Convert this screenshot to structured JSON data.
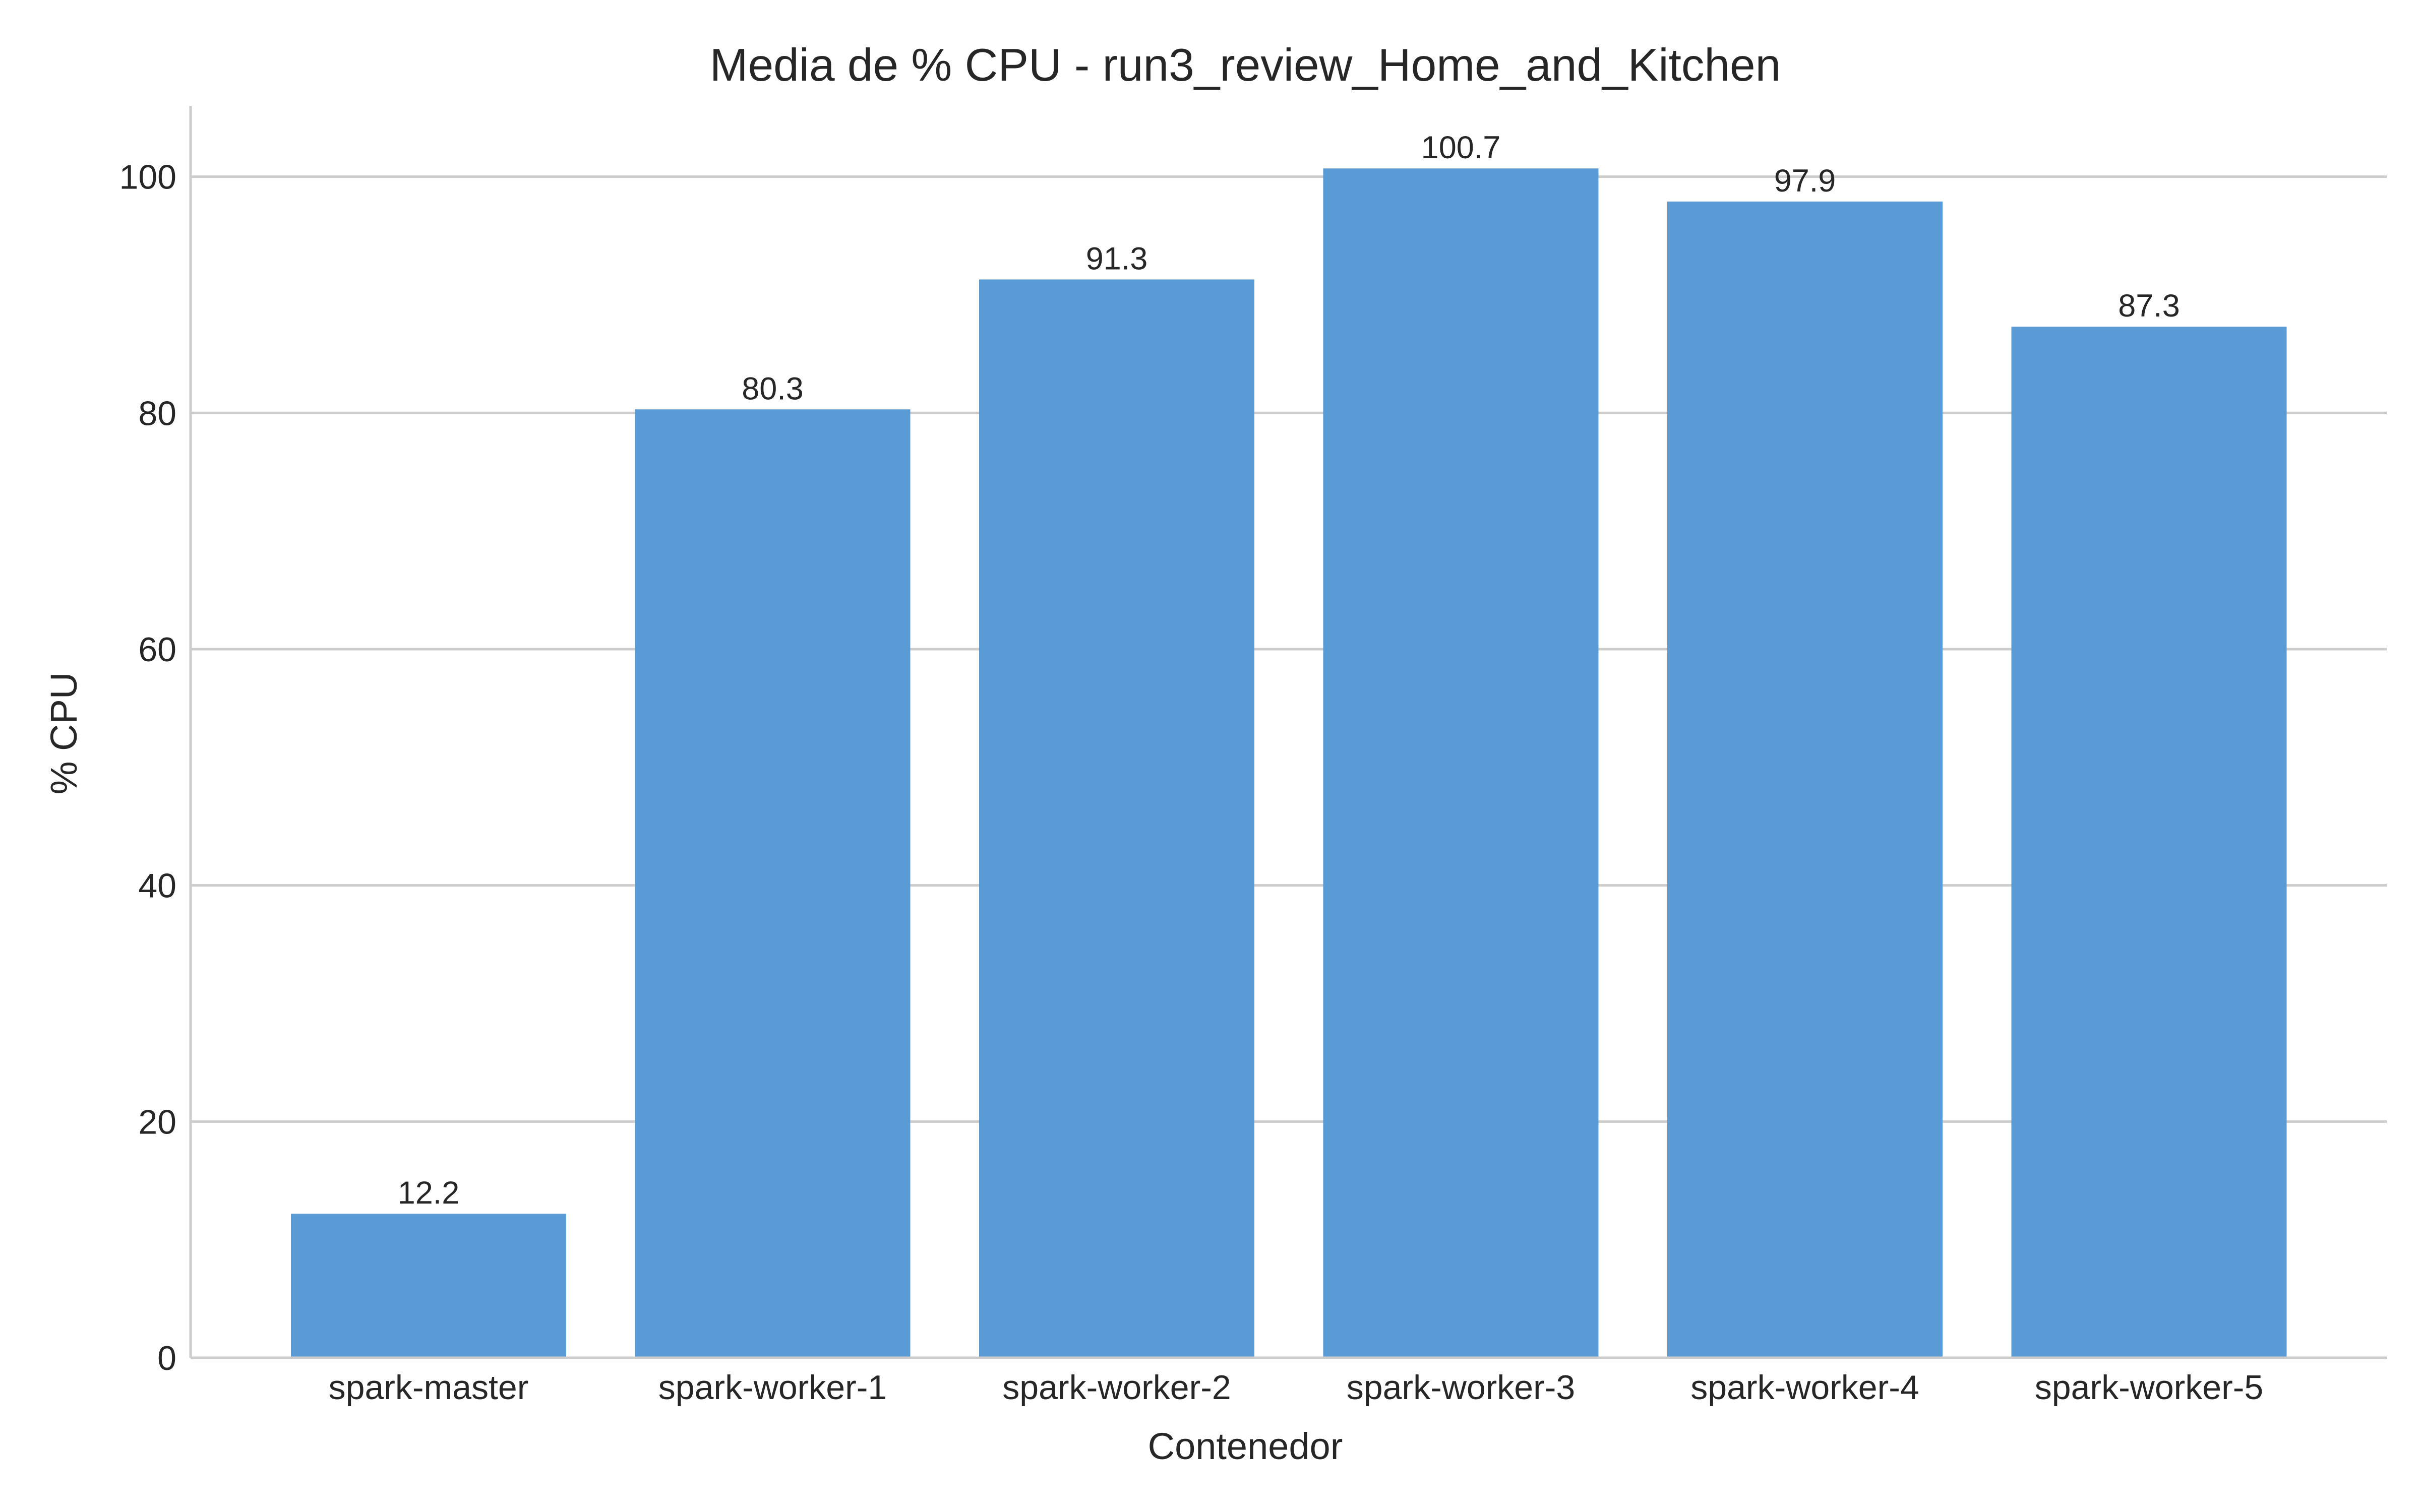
{
  "chart_data": {
    "type": "bar",
    "title": "Media de % CPU - run3_review_Home_and_Kitchen",
    "xlabel": "Contenedor",
    "ylabel": "% CPU",
    "categories": [
      "spark-master",
      "spark-worker-1",
      "spark-worker-2",
      "spark-worker-3",
      "spark-worker-4",
      "spark-worker-5"
    ],
    "values": [
      12.2,
      80.3,
      91.3,
      100.7,
      97.9,
      87.3
    ],
    "data_labels": [
      "12.2",
      "80.3",
      "91.3",
      "100.7",
      "97.9",
      "87.3"
    ],
    "ylim": [
      0,
      106
    ],
    "yticks": [
      0,
      20,
      40,
      60,
      80,
      100
    ],
    "grid": "horizontal",
    "bar_color": "#5b9bd5"
  }
}
